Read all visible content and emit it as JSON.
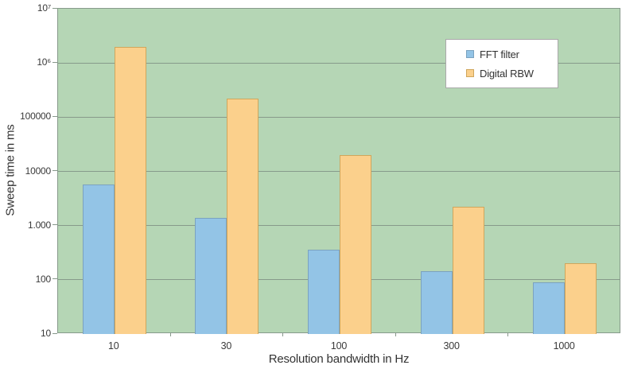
{
  "chart_data": {
    "type": "bar",
    "title": "",
    "xlabel": "Resolution bandwidth in Hz",
    "ylabel": "Sweep time in ms",
    "categories": [
      "10",
      "30",
      "100",
      "300",
      "1000"
    ],
    "series": [
      {
        "name": "FFT filter",
        "color": "#93c4e6",
        "border_color": "#7ba2bf",
        "values": [
          5800,
          1400,
          360,
          145,
          90
        ]
      },
      {
        "name": "Digital RBW",
        "color": "#fbd08c",
        "border_color": "#cfa65c",
        "values": [
          2000000,
          220000,
          20000,
          2200,
          200
        ]
      }
    ],
    "y_scale": "log",
    "ylim": [
      10,
      10000000
    ],
    "y_tick_labels": [
      "10⁷",
      "10⁶",
      "100000",
      "10000",
      "1.000",
      "100",
      "10"
    ],
    "grid": "horizontal",
    "legend_position": "top-right",
    "plot_bg_color": "#b5d6b5",
    "gridline_color": "#879a8b"
  }
}
